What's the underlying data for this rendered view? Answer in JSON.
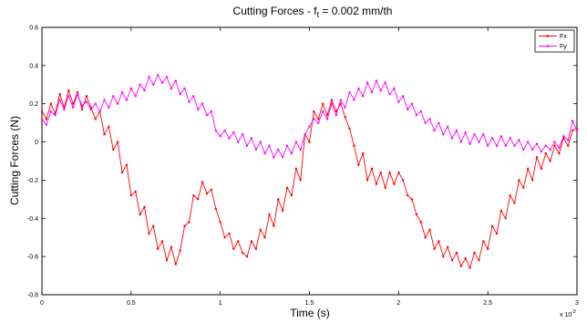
{
  "chart_data": {
    "type": "line",
    "title": "Cutting Forces - f",
    "title_sub": "t",
    "title_tail": " = 0.002 mm/th",
    "xlabel": "Time (s)",
    "ylabel": "Cutting Forces (N)",
    "x_exponent_base": "x 10",
    "x_exponent_power": "-3",
    "xlim": [
      0,
      3
    ],
    "ylim": [
      -0.8,
      0.6
    ],
    "xticks": [
      0,
      0.5,
      1,
      1.5,
      2,
      2.5,
      3
    ],
    "xtick_labels": [
      "0",
      "0.5",
      "1",
      "1.5",
      "2",
      "2.5",
      "3"
    ],
    "yticks": [
      -0.8,
      -0.6,
      -0.4,
      -0.2,
      0,
      0.2,
      0.4,
      0.6
    ],
    "ytick_labels": [
      "-0.8",
      "-0.6",
      "-0.4",
      "-0.2",
      "0",
      "0.2",
      "0.4",
      "0.6"
    ],
    "grid": false,
    "legend_position": "top-right",
    "series": [
      {
        "name": "Fx",
        "color": "#ff0000",
        "marker": "dot",
        "points": [
          [
            0.0,
            0.16
          ],
          [
            0.025,
            0.12
          ],
          [
            0.05,
            0.2
          ],
          [
            0.075,
            0.15
          ],
          [
            0.1,
            0.25
          ],
          [
            0.125,
            0.18
          ],
          [
            0.15,
            0.27
          ],
          [
            0.175,
            0.2
          ],
          [
            0.2,
            0.26
          ],
          [
            0.225,
            0.17
          ],
          [
            0.25,
            0.24
          ],
          [
            0.275,
            0.18
          ],
          [
            0.3,
            0.12
          ],
          [
            0.325,
            0.16
          ],
          [
            0.35,
            0.04
          ],
          [
            0.375,
            0.08
          ],
          [
            0.4,
            -0.04
          ],
          [
            0.425,
            0.0
          ],
          [
            0.45,
            -0.16
          ],
          [
            0.475,
            -0.12
          ],
          [
            0.5,
            -0.28
          ],
          [
            0.525,
            -0.26
          ],
          [
            0.55,
            -0.38
          ],
          [
            0.575,
            -0.34
          ],
          [
            0.6,
            -0.48
          ],
          [
            0.625,
            -0.44
          ],
          [
            0.65,
            -0.56
          ],
          [
            0.675,
            -0.52
          ],
          [
            0.7,
            -0.62
          ],
          [
            0.725,
            -0.55
          ],
          [
            0.75,
            -0.64
          ],
          [
            0.775,
            -0.57
          ],
          [
            0.8,
            -0.44
          ],
          [
            0.825,
            -0.42
          ],
          [
            0.85,
            -0.28
          ],
          [
            0.875,
            -0.3
          ],
          [
            0.9,
            -0.21
          ],
          [
            0.925,
            -0.27
          ],
          [
            0.95,
            -0.25
          ],
          [
            0.975,
            -0.35
          ],
          [
            1.0,
            -0.42
          ],
          [
            1.025,
            -0.5
          ],
          [
            1.05,
            -0.48
          ],
          [
            1.075,
            -0.56
          ],
          [
            1.1,
            -0.52
          ],
          [
            1.125,
            -0.58
          ],
          [
            1.15,
            -0.6
          ],
          [
            1.175,
            -0.52
          ],
          [
            1.2,
            -0.56
          ],
          [
            1.225,
            -0.46
          ],
          [
            1.25,
            -0.5
          ],
          [
            1.275,
            -0.38
          ],
          [
            1.3,
            -0.44
          ],
          [
            1.325,
            -0.3
          ],
          [
            1.35,
            -0.36
          ],
          [
            1.375,
            -0.24
          ],
          [
            1.4,
            -0.28
          ],
          [
            1.425,
            -0.14
          ],
          [
            1.45,
            -0.2
          ],
          [
            1.475,
            0.04
          ],
          [
            1.5,
            0.0
          ],
          [
            1.525,
            0.16
          ],
          [
            1.55,
            0.12
          ],
          [
            1.575,
            0.2
          ],
          [
            1.6,
            0.14
          ],
          [
            1.625,
            0.22
          ],
          [
            1.65,
            0.16
          ],
          [
            1.675,
            0.2
          ],
          [
            1.7,
            0.13
          ],
          [
            1.725,
            0.07
          ],
          [
            1.75,
            -0.02
          ],
          [
            1.775,
            -0.12
          ],
          [
            1.8,
            -0.06
          ],
          [
            1.825,
            -0.2
          ],
          [
            1.85,
            -0.14
          ],
          [
            1.875,
            -0.22
          ],
          [
            1.9,
            -0.16
          ],
          [
            1.925,
            -0.24
          ],
          [
            1.95,
            -0.16
          ],
          [
            1.975,
            -0.22
          ],
          [
            2.0,
            -0.16
          ],
          [
            2.025,
            -0.2
          ],
          [
            2.05,
            -0.28
          ],
          [
            2.075,
            -0.3
          ],
          [
            2.1,
            -0.38
          ],
          [
            2.125,
            -0.42
          ],
          [
            2.15,
            -0.5
          ],
          [
            2.175,
            -0.46
          ],
          [
            2.2,
            -0.56
          ],
          [
            2.225,
            -0.52
          ],
          [
            2.25,
            -0.6
          ],
          [
            2.275,
            -0.55
          ],
          [
            2.3,
            -0.62
          ],
          [
            2.325,
            -0.58
          ],
          [
            2.35,
            -0.65
          ],
          [
            2.375,
            -0.61
          ],
          [
            2.4,
            -0.66
          ],
          [
            2.425,
            -0.58
          ],
          [
            2.45,
            -0.62
          ],
          [
            2.475,
            -0.52
          ],
          [
            2.5,
            -0.56
          ],
          [
            2.525,
            -0.44
          ],
          [
            2.55,
            -0.48
          ],
          [
            2.575,
            -0.36
          ],
          [
            2.6,
            -0.4
          ],
          [
            2.625,
            -0.28
          ],
          [
            2.65,
            -0.32
          ],
          [
            2.675,
            -0.2
          ],
          [
            2.7,
            -0.24
          ],
          [
            2.725,
            -0.14
          ],
          [
            2.75,
            -0.2
          ],
          [
            2.775,
            -0.08
          ],
          [
            2.8,
            -0.14
          ],
          [
            2.825,
            -0.06
          ],
          [
            2.85,
            -0.1
          ],
          [
            2.875,
            -0.02
          ],
          [
            2.9,
            -0.06
          ],
          [
            2.925,
            0.02
          ],
          [
            2.95,
            -0.02
          ],
          [
            2.975,
            0.06
          ],
          [
            3.0,
            0.07
          ]
        ]
      },
      {
        "name": "Fy",
        "color": "#ff00ff",
        "marker": "dot",
        "points": [
          [
            0.0,
            0.12
          ],
          [
            0.025,
            0.09
          ],
          [
            0.05,
            0.16
          ],
          [
            0.075,
            0.14
          ],
          [
            0.1,
            0.22
          ],
          [
            0.125,
            0.17
          ],
          [
            0.15,
            0.24
          ],
          [
            0.175,
            0.18
          ],
          [
            0.2,
            0.25
          ],
          [
            0.225,
            0.19
          ],
          [
            0.25,
            0.21
          ],
          [
            0.275,
            0.17
          ],
          [
            0.3,
            0.2
          ],
          [
            0.325,
            0.16
          ],
          [
            0.35,
            0.22
          ],
          [
            0.375,
            0.18
          ],
          [
            0.4,
            0.24
          ],
          [
            0.425,
            0.2
          ],
          [
            0.45,
            0.26
          ],
          [
            0.475,
            0.22
          ],
          [
            0.5,
            0.28
          ],
          [
            0.525,
            0.24
          ],
          [
            0.55,
            0.3
          ],
          [
            0.575,
            0.27
          ],
          [
            0.6,
            0.34
          ],
          [
            0.625,
            0.3
          ],
          [
            0.65,
            0.35
          ],
          [
            0.675,
            0.31
          ],
          [
            0.7,
            0.34
          ],
          [
            0.725,
            0.28
          ],
          [
            0.75,
            0.32
          ],
          [
            0.775,
            0.25
          ],
          [
            0.8,
            0.28
          ],
          [
            0.825,
            0.21
          ],
          [
            0.85,
            0.24
          ],
          [
            0.875,
            0.17
          ],
          [
            0.9,
            0.2
          ],
          [
            0.925,
            0.14
          ],
          [
            0.95,
            0.16
          ],
          [
            0.975,
            0.06
          ],
          [
            1.0,
            0.03
          ],
          [
            1.025,
            0.06
          ],
          [
            1.05,
            0.02
          ],
          [
            1.075,
            0.05
          ],
          [
            1.1,
            0.0
          ],
          [
            1.125,
            0.04
          ],
          [
            1.15,
            -0.02
          ],
          [
            1.175,
            0.02
          ],
          [
            1.2,
            -0.04
          ],
          [
            1.225,
            0.0
          ],
          [
            1.25,
            -0.06
          ],
          [
            1.275,
            -0.02
          ],
          [
            1.3,
            -0.08
          ],
          [
            1.325,
            -0.04
          ],
          [
            1.35,
            -0.08
          ],
          [
            1.375,
            -0.02
          ],
          [
            1.4,
            -0.06
          ],
          [
            1.425,
            0.0
          ],
          [
            1.45,
            -0.04
          ],
          [
            1.475,
            0.04
          ],
          [
            1.5,
            0.08
          ],
          [
            1.525,
            0.12
          ],
          [
            1.55,
            0.1
          ],
          [
            1.575,
            0.16
          ],
          [
            1.6,
            0.12
          ],
          [
            1.625,
            0.2
          ],
          [
            1.65,
            0.14
          ],
          [
            1.675,
            0.22
          ],
          [
            1.7,
            0.18
          ],
          [
            1.725,
            0.26
          ],
          [
            1.75,
            0.22
          ],
          [
            1.775,
            0.28
          ],
          [
            1.8,
            0.24
          ],
          [
            1.825,
            0.31
          ],
          [
            1.85,
            0.26
          ],
          [
            1.875,
            0.32
          ],
          [
            1.9,
            0.27
          ],
          [
            1.925,
            0.31
          ],
          [
            1.95,
            0.25
          ],
          [
            1.975,
            0.28
          ],
          [
            2.0,
            0.21
          ],
          [
            2.025,
            0.24
          ],
          [
            2.05,
            0.17
          ],
          [
            2.075,
            0.2
          ],
          [
            2.1,
            0.14
          ],
          [
            2.125,
            0.16
          ],
          [
            2.15,
            0.1
          ],
          [
            2.175,
            0.12
          ],
          [
            2.2,
            0.06
          ],
          [
            2.225,
            0.1
          ],
          [
            2.25,
            0.04
          ],
          [
            2.275,
            0.08
          ],
          [
            2.3,
            0.02
          ],
          [
            2.325,
            0.06
          ],
          [
            2.35,
            0.0
          ],
          [
            2.375,
            0.05
          ],
          [
            2.4,
            -0.01
          ],
          [
            2.425,
            0.04
          ],
          [
            2.45,
            0.0
          ],
          [
            2.475,
            0.04
          ],
          [
            2.5,
            -0.02
          ],
          [
            2.525,
            0.02
          ],
          [
            2.55,
            -0.02
          ],
          [
            2.575,
            0.03
          ],
          [
            2.6,
            -0.02
          ],
          [
            2.625,
            0.02
          ],
          [
            2.65,
            -0.02
          ],
          [
            2.675,
            0.01
          ],
          [
            2.7,
            -0.04
          ],
          [
            2.725,
            0.0
          ],
          [
            2.75,
            -0.04
          ],
          [
            2.775,
            -0.01
          ],
          [
            2.8,
            -0.05
          ],
          [
            2.825,
            -0.02
          ],
          [
            2.85,
            -0.04
          ],
          [
            2.875,
            0.0
          ],
          [
            2.9,
            -0.03
          ],
          [
            2.925,
            0.03
          ],
          [
            2.95,
            0.01
          ],
          [
            2.975,
            0.11
          ],
          [
            3.0,
            0.06
          ]
        ]
      }
    ]
  }
}
